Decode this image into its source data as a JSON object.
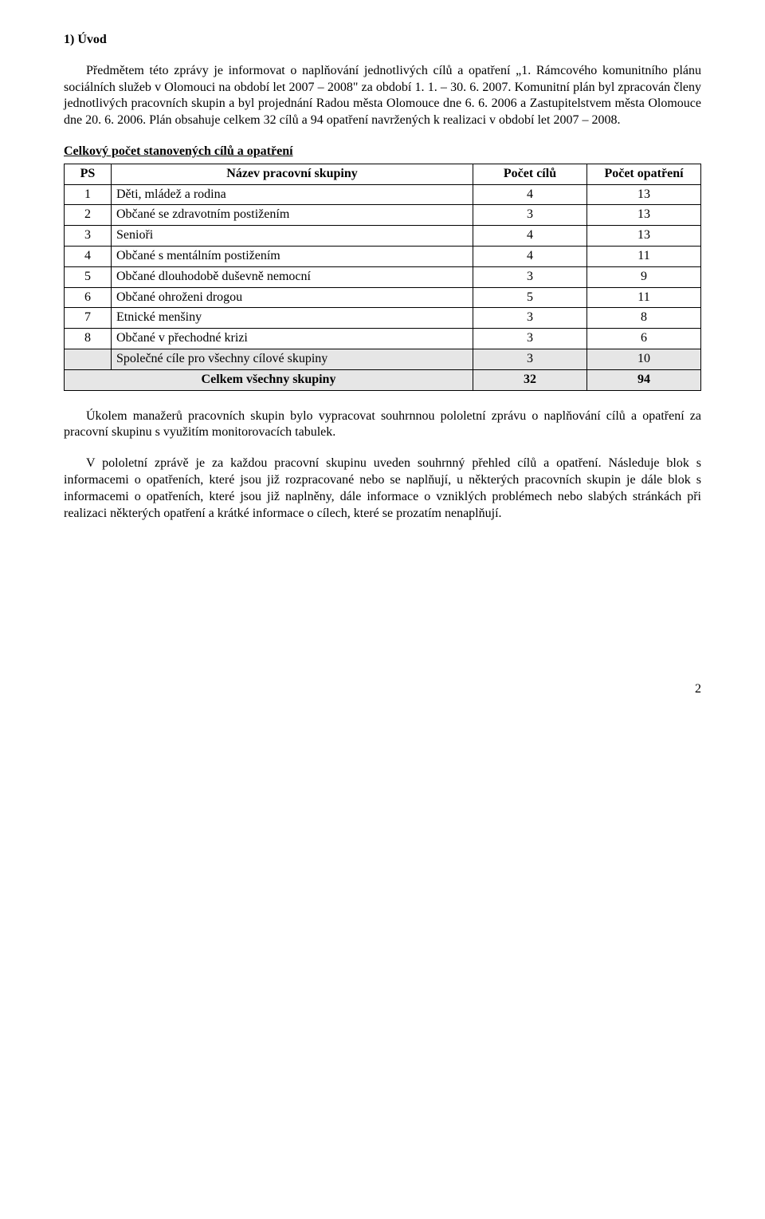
{
  "heading": "1) Úvod",
  "para1": "Předmětem této zprávy je informovat o naplňování jednotlivých cílů a opatření „1. Rámcového komunitního plánu sociálních služeb v Olomouci na období let 2007 – 2008\" za období 1. 1. – 30. 6. 2007. Komunitní plán byl zpracován členy jednotlivých pracovních skupin a byl projednání Radou města Olomouce dne 6. 6. 2006 a Zastupitelstvem města Olomouce dne 20. 6. 2006. Plán obsahuje celkem 32 cílů a 94 opatření navržených k realizaci v období let 2007 – 2008.",
  "subheading": "Celkový počet stanovených cílů a opatření",
  "table": {
    "headers": [
      "PS",
      "Název pracovní skupiny",
      "Počet cílů",
      "Počet opatření"
    ],
    "rows": [
      {
        "ps": "1",
        "name": "Děti, mládež a rodina",
        "goals": "4",
        "measures": "13",
        "shaded": false
      },
      {
        "ps": "2",
        "name": "Občané se zdravotním postižením",
        "goals": "3",
        "measures": "13",
        "shaded": false
      },
      {
        "ps": "3",
        "name": "Senioři",
        "goals": "4",
        "measures": "13",
        "shaded": false
      },
      {
        "ps": "4",
        "name": "Občané s mentálním postižením",
        "goals": "4",
        "measures": "11",
        "shaded": false
      },
      {
        "ps": "5",
        "name": "Občané dlouhodobě duševně nemocní",
        "goals": "3",
        "measures": "9",
        "shaded": false
      },
      {
        "ps": "6",
        "name": "Občané ohroženi drogou",
        "goals": "5",
        "measures": "11",
        "shaded": false
      },
      {
        "ps": "7",
        "name": "Etnické menšiny",
        "goals": "3",
        "measures": "8",
        "shaded": false
      },
      {
        "ps": "8",
        "name": "Občané v přechodné krizi",
        "goals": "3",
        "measures": "6",
        "shaded": false
      },
      {
        "ps": "",
        "name": "Společné cíle pro všechny cílové skupiny",
        "goals": "3",
        "measures": "10",
        "shaded": true
      }
    ],
    "total": {
      "name": "Celkem všechny skupiny",
      "goals": "32",
      "measures": "94"
    }
  },
  "para2": "Úkolem manažerů pracovních skupin bylo vypracovat souhrnnou pololetní zprávu o naplňování cílů a opatření za pracovní skupinu s využitím monitorovacích tabulek.",
  "para3": "V pololetní zprávě je za každou pracovní skupinu uveden souhrnný přehled cílů a opatření. Následuje blok s informacemi o opatřeních, které jsou již rozpracované nebo se naplňují, u některých pracovních skupin je dále blok s informacemi o opatřeních, které jsou již naplněny, dále informace o vzniklých problémech nebo slabých stránkách při realizaci některých opatření a krátké informace o cílech, které se prozatím nenaplňují.",
  "pageNumber": "2"
}
